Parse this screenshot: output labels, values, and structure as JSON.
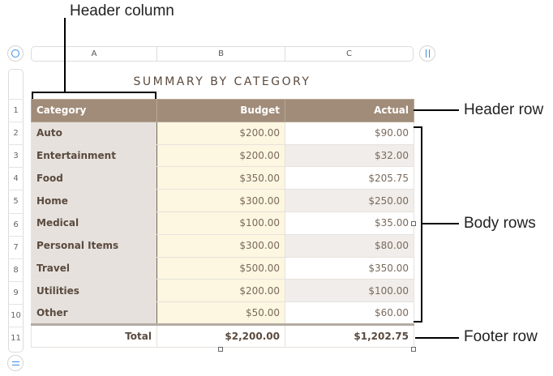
{
  "callouts": {
    "header_column": "Header column",
    "header_row": "Header row",
    "body_rows": "Body rows",
    "footer_row": "Footer row"
  },
  "columns": [
    "A",
    "B",
    "C"
  ],
  "row_numbers": [
    "1",
    "2",
    "3",
    "4",
    "5",
    "6",
    "7",
    "8",
    "9",
    "10",
    "11"
  ],
  "table": {
    "title": "SUMMARY BY CATEGORY",
    "headers": [
      "Category",
      "Budget",
      "Actual"
    ],
    "rows": [
      [
        "Auto",
        "$200.00",
        "$90.00"
      ],
      [
        "Entertainment",
        "$200.00",
        "$32.00"
      ],
      [
        "Food",
        "$350.00",
        "$205.75"
      ],
      [
        "Home",
        "$300.00",
        "$250.00"
      ],
      [
        "Medical",
        "$100.00",
        "$35.00"
      ],
      [
        "Personal Items",
        "$300.00",
        "$80.00"
      ],
      [
        "Travel",
        "$500.00",
        "$350.00"
      ],
      [
        "Utilities",
        "$200.00",
        "$100.00"
      ],
      [
        "Other",
        "$50.00",
        "$60.00"
      ]
    ],
    "footer": [
      "Total",
      "$2,200.00",
      "$1,202.75"
    ]
  },
  "colors": {
    "header_bg": "#a08c79",
    "header_column_bg": "#e6e1dd",
    "budget_column_bg": "#fdf6e0",
    "accent": "#3a8ee6"
  },
  "icons": {
    "table_select": "circle-icon",
    "add_column": "pause-bars-icon",
    "add_row": "equals-icon"
  }
}
